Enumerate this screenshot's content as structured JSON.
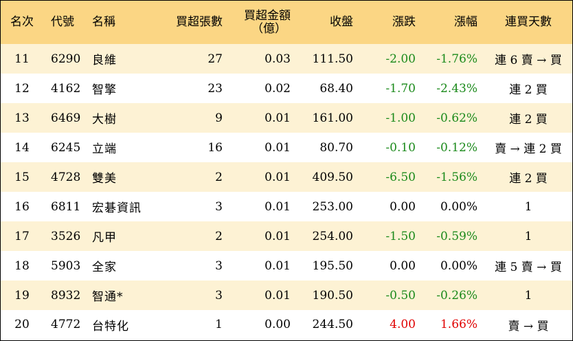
{
  "headers": {
    "rank": "名次",
    "code": "代號",
    "name": "名稱",
    "net_buy_lots": "買超張數",
    "net_buy_amount_line1": "買超金額",
    "net_buy_amount_line2": "（億）",
    "close": "收盤",
    "change": "漲跌",
    "change_pct": "漲幅",
    "consecutive_days": "連買天數"
  },
  "colors": {
    "header_bg": "#fbd684",
    "stripe_bg": "#fdf2d4",
    "down": "#1b8a1b",
    "up": "#e00000"
  },
  "rows": [
    {
      "rank": "11",
      "code": "6290",
      "name": "良維",
      "lots": "27",
      "amount": "0.03",
      "close": "111.50",
      "change": "-2.00",
      "pct": "-1.76%",
      "days": "連 6 賣 → 買",
      "dir": "neg"
    },
    {
      "rank": "12",
      "code": "4162",
      "name": "智擎",
      "lots": "23",
      "amount": "0.02",
      "close": "68.40",
      "change": "-1.70",
      "pct": "-2.43%",
      "days": "連 2 買",
      "dir": "neg"
    },
    {
      "rank": "13",
      "code": "6469",
      "name": "大樹",
      "lots": "9",
      "amount": "0.01",
      "close": "161.00",
      "change": "-1.00",
      "pct": "-0.62%",
      "days": "連 2 買",
      "dir": "neg"
    },
    {
      "rank": "14",
      "code": "6245",
      "name": "立端",
      "lots": "16",
      "amount": "0.01",
      "close": "80.70",
      "change": "-0.10",
      "pct": "-0.12%",
      "days": "賣 → 連 2 買",
      "dir": "neg"
    },
    {
      "rank": "15",
      "code": "4728",
      "name": "雙美",
      "lots": "2",
      "amount": "0.01",
      "close": "409.50",
      "change": "-6.50",
      "pct": "-1.56%",
      "days": "連 2 買",
      "dir": "neg"
    },
    {
      "rank": "16",
      "code": "6811",
      "name": "宏碁資訊",
      "lots": "3",
      "amount": "0.01",
      "close": "253.00",
      "change": "0.00",
      "pct": "0.00%",
      "days": "1",
      "dir": "flat"
    },
    {
      "rank": "17",
      "code": "3526",
      "name": "凡甲",
      "lots": "2",
      "amount": "0.01",
      "close": "254.00",
      "change": "-1.50",
      "pct": "-0.59%",
      "days": "1",
      "dir": "neg"
    },
    {
      "rank": "18",
      "code": "5903",
      "name": "全家",
      "lots": "3",
      "amount": "0.01",
      "close": "195.50",
      "change": "0.00",
      "pct": "0.00%",
      "days": "連 5 賣 → 買",
      "dir": "flat"
    },
    {
      "rank": "19",
      "code": "8932",
      "name": "智通*",
      "lots": "3",
      "amount": "0.01",
      "close": "190.50",
      "change": "-0.50",
      "pct": "-0.26%",
      "days": "1",
      "dir": "neg"
    },
    {
      "rank": "20",
      "code": "4772",
      "name": "台特化",
      "lots": "1",
      "amount": "0.00",
      "close": "244.50",
      "change": "4.00",
      "pct": "1.66%",
      "days": "賣 → 買",
      "dir": "pos"
    }
  ]
}
